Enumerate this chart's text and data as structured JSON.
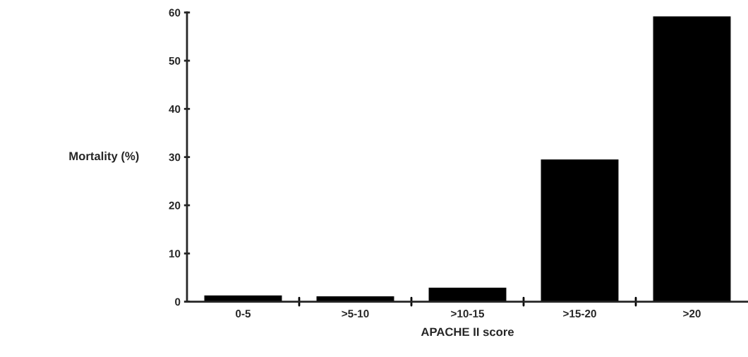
{
  "chart_data": {
    "type": "bar",
    "xlabel": "APACHE II score",
    "ylabel": "Mortality (%)",
    "categories": [
      "0-5",
      ">5-10",
      ">10-15",
      ">15-20",
      ">20"
    ],
    "values": [
      1.4,
      1.2,
      3.0,
      29.6,
      59.3
    ],
    "color": "#000000",
    "ylim": [
      0,
      60
    ],
    "yticks": [
      0,
      10,
      20,
      30,
      40,
      50,
      60
    ],
    "grid": false
  }
}
